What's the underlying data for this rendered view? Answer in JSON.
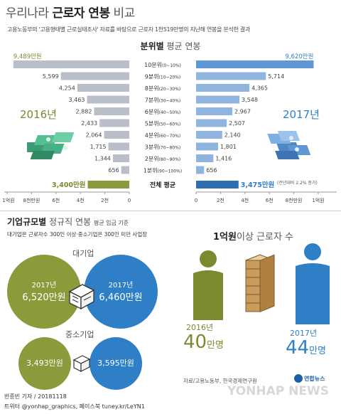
{
  "header": {
    "title_prefix": "우리나라",
    "title_highlight": "근로자 연봉",
    "title_suffix": "비교",
    "subtitle": "고용노동부의 '고용형태별 근로실태조사' 자료를 바탕으로 근로자 1천519만명의 지난해 연봉을 분석한 결과"
  },
  "decile_section": {
    "title_bold": "분위별",
    "title_rest": "평균 연봉",
    "year_left": "2016년",
    "year_right": "2017년",
    "left_axis_ticks": [
      "1억원",
      "8천만원",
      "6천",
      "4천",
      "2천",
      "0"
    ],
    "right_axis_ticks": [
      "0",
      "2천",
      "4천",
      "6천",
      "8천만원",
      "1억원"
    ]
  },
  "chart_data": {
    "type": "bar",
    "title": "분위별 평균 연봉",
    "categories": [
      "10분위 (0~10%)",
      "9분위 (10~20%)",
      "8분위 (20~30%)",
      "7분위 (30~40%)",
      "6분위 (40~50%)",
      "5분위 (50~60%)",
      "4분위 (60~70%)",
      "3분위 (70~80%)",
      "2분위 (80~90%)",
      "1분위 (90~100%)",
      "전체 평균"
    ],
    "series": [
      {
        "name": "2016년",
        "values": [
          9489,
          5599,
          4254,
          3463,
          2882,
          2433,
          2064,
          1715,
          1344,
          656,
          3400
        ],
        "color": "#b0bdd0",
        "highlight_color": "#8c9a3c"
      },
      {
        "name": "2017년",
        "values": [
          9620,
          5714,
          4365,
          3548,
          2967,
          2507,
          2140,
          1801,
          1416,
          656,
          3475
        ],
        "color": "#7fa7d8",
        "highlight_color": "#2f6fb0"
      }
    ],
    "value_labels_2016": [
      "9,489만원",
      "5,599",
      "4,254",
      "3,463",
      "2,882",
      "2,433",
      "2,064",
      "1,715",
      "1,344",
      "656",
      "3,400만원"
    ],
    "value_labels_2017": [
      "9,620만원",
      "5,714",
      "4,365",
      "3,548",
      "2,967",
      "2,507",
      "2,140",
      "1,801",
      "1,416",
      "656",
      "3,475만원"
    ],
    "axis_max": 10000,
    "unit": "만원",
    "xlabel": "",
    "ylabel": ""
  },
  "avg_note": "(전년대비 2.2% 증가)",
  "company_section": {
    "title_bold": "기업규모별",
    "title_rest": "정규직 연봉",
    "title_small": "평균 임금 기준",
    "note": "대기업은 근로자수 300인 이상·중소기업은 300인 미만 사업장",
    "large_label": "대기업",
    "small_label": "중소기업",
    "large_2016_year": "2017년",
    "large_2016_value": "6,520만원",
    "large_2017_year": "2017년",
    "large_2017_value": "6,460만원",
    "small_2016_value": "3,493만원",
    "small_2017_value": "3,595만원"
  },
  "high_earner_section": {
    "title_bold": "1억원",
    "title_rest": "이상 근로자 수",
    "year_2016": "2016년",
    "count_2016": "40",
    "unit_2016": "만명",
    "year_2017": "2017년",
    "count_2017": "44",
    "unit_2017": "만명"
  },
  "footer": {
    "source": "자료/고용노동부, 한국경제연구원",
    "logo_text": "연합뉴스",
    "watermark": "YONHAP NEWS",
    "byline": "반종빈 기자 / 20181118",
    "social": "트위터 @yonhap_graphics, 페이스북 tuney.kr/LeYN1"
  },
  "colors": {
    "olive": "#8c9a3c",
    "blue": "#2f7fc6",
    "grey_bar": "#b8bec8",
    "light_blue_bar": "#8fb4de",
    "money_green": "#4fb38a",
    "money_blue": "#6fa3d8"
  }
}
